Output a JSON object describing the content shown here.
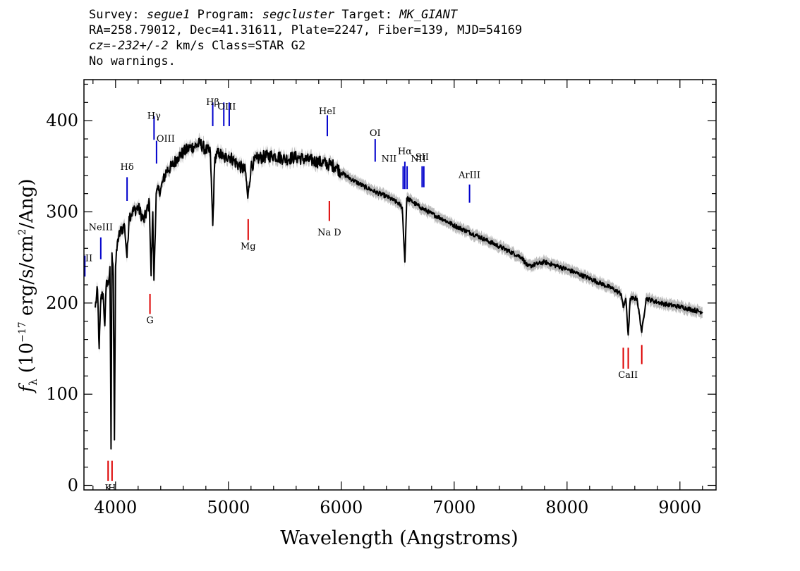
{
  "header": {
    "survey_label": "Survey:",
    "survey": "segue1",
    "program_label": "Program:",
    "program": "segcluster",
    "target_label": "Target:",
    "target": "MK_GIANT",
    "line2": "RA=258.79012, Dec=41.31611, Plate=2247, Fiber=139, MJD=54169",
    "cz_label": "cz=",
    "cz": "-232+/-2",
    "cz_units_class": "km/s Class=STAR G2",
    "line4": "No warnings."
  },
  "chart_data": {
    "type": "line",
    "xlabel": "Wavelength (Angstroms)",
    "ylabel": "f_λ (10^-17 erg/s/cm²/Ang)",
    "xlim": [
      3720,
      9320
    ],
    "ylim": [
      -5,
      445
    ],
    "xticks": [
      4000,
      5000,
      6000,
      7000,
      8000,
      9000
    ],
    "yticks": [
      0,
      100,
      200,
      300,
      400
    ],
    "x_minor_step": 200,
    "y_minor_step": 20,
    "grid": false,
    "colors": {
      "flux": "#000000",
      "error_band": "#bbbbbb",
      "emission": "#0000cc",
      "absorption": "#dd0000"
    },
    "series": [
      {
        "x": [
          3820,
          3840,
          3855,
          3870,
          3890,
          3905,
          3920,
          3935,
          3950,
          3960,
          3968,
          3980,
          3990,
          4000,
          4020,
          4050,
          4080,
          4101,
          4120,
          4150,
          4200,
          4250,
          4300,
          4315,
          4330,
          4340,
          4360,
          4400,
          4450,
          4500,
          4550,
          4600,
          4650,
          4700,
          4750,
          4800,
          4840,
          4861,
          4880,
          4920,
          4960,
          5000,
          5050,
          5100,
          5150,
          5172,
          5200,
          5250,
          5300,
          5400,
          5500,
          5600,
          5700,
          5800,
          5890,
          5950,
          6000,
          6100,
          6200,
          6300,
          6400,
          6500,
          6540,
          6563,
          6580,
          6620,
          6700,
          6800,
          6900,
          7000,
          7200,
          7400,
          7600,
          7650,
          7800,
          8000,
          8200,
          8400,
          8480,
          8498,
          8520,
          8542,
          8560,
          8620,
          8662,
          8700,
          8800,
          8900,
          9000,
          9100,
          9200
        ],
        "y": [
          195,
          215,
          150,
          205,
          210,
          175,
          225,
          220,
          240,
          40,
          255,
          230,
          50,
          240,
          270,
          280,
          285,
          250,
          295,
          300,
          305,
          290,
          310,
          230,
          300,
          225,
          320,
          325,
          345,
          350,
          360,
          365,
          370,
          372,
          375,
          368,
          365,
          285,
          360,
          365,
          358,
          362,
          356,
          350,
          345,
          315,
          350,
          358,
          360,
          362,
          358,
          360,
          357,
          355,
          352,
          350,
          343,
          335,
          328,
          322,
          317,
          310,
          305,
          245,
          315,
          312,
          305,
          298,
          292,
          285,
          274,
          262,
          250,
          240,
          245,
          237,
          227,
          216,
          210,
          195,
          205,
          165,
          205,
          205,
          168,
          205,
          201,
          198,
          196,
          193,
          190
        ]
      }
    ],
    "annotations": [
      {
        "text": "NII",
        "x": 3728,
        "y_label": 246,
        "y1": 229,
        "y2": 252,
        "kind": "emission"
      },
      {
        "text": "NeIII",
        "x": 3869,
        "y_label": 280,
        "y1": 248,
        "y2": 272,
        "kind": "emission"
      },
      {
        "text": "Hδ",
        "x": 4102,
        "y_label": 346,
        "y1": 312,
        "y2": 338,
        "kind": "emission"
      },
      {
        "text": "Hγ",
        "x": 4341,
        "y_label": 402,
        "y1": 379,
        "y2": 405,
        "kind": "emission"
      },
      {
        "text": "OIII",
        "x": 4363,
        "y_label": 377,
        "y1": 353,
        "y2": 378,
        "kind": "emission"
      },
      {
        "text": "Hβ",
        "x": 4861,
        "y_label": 417,
        "y1": 394,
        "y2": 420,
        "kind": "emission"
      },
      {
        "text": "OIII",
        "x": 4959,
        "y_label": 412,
        "y1": 394,
        "y2": 420,
        "kind": "emission"
      },
      {
        "text": "OIII",
        "x": 5007,
        "y_label": 412,
        "y1": 394,
        "y2": 420,
        "kind": "emission"
      },
      {
        "text": "HeI",
        "x": 5876,
        "y_label": 407,
        "y1": 383,
        "y2": 406,
        "kind": "emission"
      },
      {
        "text": "OI",
        "x": 6300,
        "y_label": 383,
        "y1": 355,
        "y2": 380,
        "kind": "emission"
      },
      {
        "text": "NII",
        "x": 6548,
        "y_label": 355,
        "y1": 325,
        "y2": 350,
        "kind": "emission"
      },
      {
        "text": "Hα",
        "x": 6563,
        "y_label": 363,
        "y1": 325,
        "y2": 355,
        "kind": "emission"
      },
      {
        "text": "NII",
        "x": 6583,
        "y_label": 355,
        "y1": 325,
        "y2": 350,
        "kind": "emission"
      },
      {
        "text": "SII",
        "x": 6716,
        "y_label": 357,
        "y1": 327,
        "y2": 350,
        "kind": "emission"
      },
      {
        "text": "SII",
        "x": 6731,
        "y_label": 357,
        "y1": 327,
        "y2": 350,
        "kind": "emission"
      },
      {
        "text": "ArIII",
        "x": 7136,
        "y_label": 337,
        "y1": 310,
        "y2": 330,
        "kind": "emission"
      },
      {
        "text": "K",
        "x": 3934,
        "y_label": -6,
        "y1": 5,
        "y2": 27,
        "kind": "absorption"
      },
      {
        "text": "H",
        "x": 3969,
        "y_label": -6,
        "y1": 5,
        "y2": 27,
        "kind": "absorption"
      },
      {
        "text": "G",
        "x": 4305,
        "y_label": 178,
        "y1": 188,
        "y2": 210,
        "kind": "absorption"
      },
      {
        "text": "Mg",
        "x": 5175,
        "y_label": 259,
        "y1": 269,
        "y2": 292,
        "kind": "absorption"
      },
      {
        "text": "Na D",
        "x": 5894,
        "y_label": 274,
        "y1": 290,
        "y2": 312,
        "kind": "absorption"
      },
      {
        "text": "CaII",
        "x": 8498,
        "y_label": 118,
        "y1": 128,
        "y2": 151,
        "kind": "absorption"
      },
      {
        "text": "CaII",
        "x": 8542,
        "y_label": 118,
        "y1": 128,
        "y2": 151,
        "kind": "absorption"
      },
      {
        "text": "CaII",
        "x": 8662,
        "y_label": 118,
        "y1": 133,
        "y2": 154,
        "kind": "absorption"
      }
    ]
  }
}
